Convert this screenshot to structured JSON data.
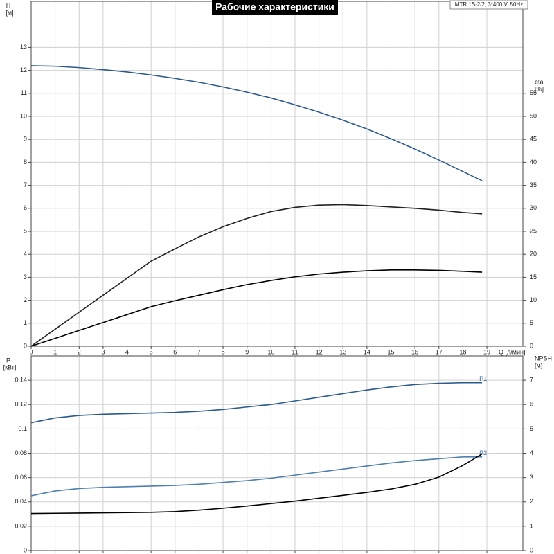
{
  "chart_data": [
    {
      "type": "line",
      "title": "Рабочие характеристики",
      "annotation": "MTR 1S-2/2, 3*400 V, 50Hz",
      "ylabel": "H",
      "yunit": "[м]",
      "y2label": "eta",
      "y2unit": "[%]",
      "xlabel": "Q [л/мин]",
      "x": [
        0,
        1,
        2,
        3,
        4,
        5,
        6,
        7,
        8,
        9,
        10,
        11,
        12,
        13,
        14,
        15,
        16,
        17,
        18,
        18.8
      ],
      "series": [
        {
          "color": "#2b5b8e",
          "values": [
            12.2,
            12.18,
            12.12,
            12.03,
            11.93,
            11.8,
            11.65,
            11.48,
            11.28,
            11.05,
            10.8,
            10.5,
            10.18,
            9.83,
            9.45,
            9.03,
            8.58,
            8.1,
            7.6,
            7.2
          ]
        },
        {
          "color": "#222222",
          "axis": "y2",
          "values": [
            0,
            3.7,
            7.4,
            11.1,
            14.8,
            18.5,
            21.2,
            23.8,
            26,
            27.8,
            29.3,
            30.2,
            30.7,
            30.8,
            30.6,
            30.3,
            30,
            29.6,
            29.1,
            28.8
          ]
        },
        {
          "color": "#000000",
          "axis": "y2",
          "values": [
            0,
            1.72,
            3.44,
            5.16,
            6.88,
            8.6,
            9.9,
            11.1,
            12.3,
            13.4,
            14.3,
            15.1,
            15.7,
            16.1,
            16.4,
            16.6,
            16.6,
            16.5,
            16.3,
            16.1
          ]
        }
      ],
      "xlim": [
        0,
        20.5
      ],
      "xticks": [
        0,
        1,
        2,
        3,
        4,
        5,
        6,
        7,
        8,
        9,
        10,
        11,
        12,
        13,
        14,
        15,
        16,
        17,
        18,
        19
      ],
      "show_xtick_labels": true,
      "ylim": [
        0,
        15
      ],
      "yticks": [
        0,
        1,
        2,
        3,
        4,
        5,
        6,
        7,
        8,
        9,
        10,
        11,
        12,
        13
      ],
      "y2lim": [
        0,
        75
      ],
      "y2ticks": [
        0,
        5,
        10,
        15,
        20,
        25,
        30,
        35,
        40,
        45,
        50,
        55
      ],
      "grid": true
    },
    {
      "type": "line",
      "ylabel": "P",
      "yunit": "[кВт]",
      "y2label": "NPSH",
      "y2unit": "[м]",
      "x": [
        0,
        1,
        2,
        3,
        4,
        5,
        6,
        7,
        8,
        9,
        10,
        11,
        12,
        13,
        14,
        15,
        16,
        17,
        18,
        18.8
      ],
      "series": [
        {
          "name": "P1",
          "color": "#2b5b8e",
          "values": [
            0.105,
            0.109,
            0.111,
            0.112,
            0.1125,
            0.113,
            0.1135,
            0.1145,
            0.116,
            0.118,
            0.12,
            0.123,
            0.126,
            0.129,
            0.132,
            0.1345,
            0.1365,
            0.1375,
            0.138,
            0.138
          ]
        },
        {
          "name": "P2",
          "color": "#4f7fb0",
          "values": [
            0.045,
            0.049,
            0.051,
            0.052,
            0.0525,
            0.053,
            0.0535,
            0.0545,
            0.056,
            0.0575,
            0.0595,
            0.062,
            0.0645,
            0.067,
            0.0695,
            0.072,
            0.074,
            0.0755,
            0.077,
            0.077
          ]
        },
        {
          "color": "#000000",
          "axis": "y2",
          "values": [
            1.52,
            1.53,
            1.54,
            1.55,
            1.56,
            1.57,
            1.6,
            1.66,
            1.74,
            1.83,
            1.93,
            2.03,
            2.15,
            2.27,
            2.39,
            2.53,
            2.72,
            3.02,
            3.5,
            3.97
          ]
        }
      ],
      "xlim": [
        0,
        20.5
      ],
      "xticks": [
        0,
        1,
        2,
        3,
        4,
        5,
        6,
        7,
        8,
        9,
        10,
        11,
        12,
        13,
        14,
        15,
        16,
        17,
        18,
        19
      ],
      "show_xtick_labels": false,
      "ylim": [
        0,
        0.16
      ],
      "yticks": [
        0,
        0.02,
        0.04,
        0.06,
        0.08,
        0.1,
        0.12,
        0.14
      ],
      "y2lim": [
        0,
        8
      ],
      "y2ticks": [
        0,
        1,
        2,
        3,
        4,
        5,
        6,
        7
      ],
      "grid": true
    }
  ]
}
